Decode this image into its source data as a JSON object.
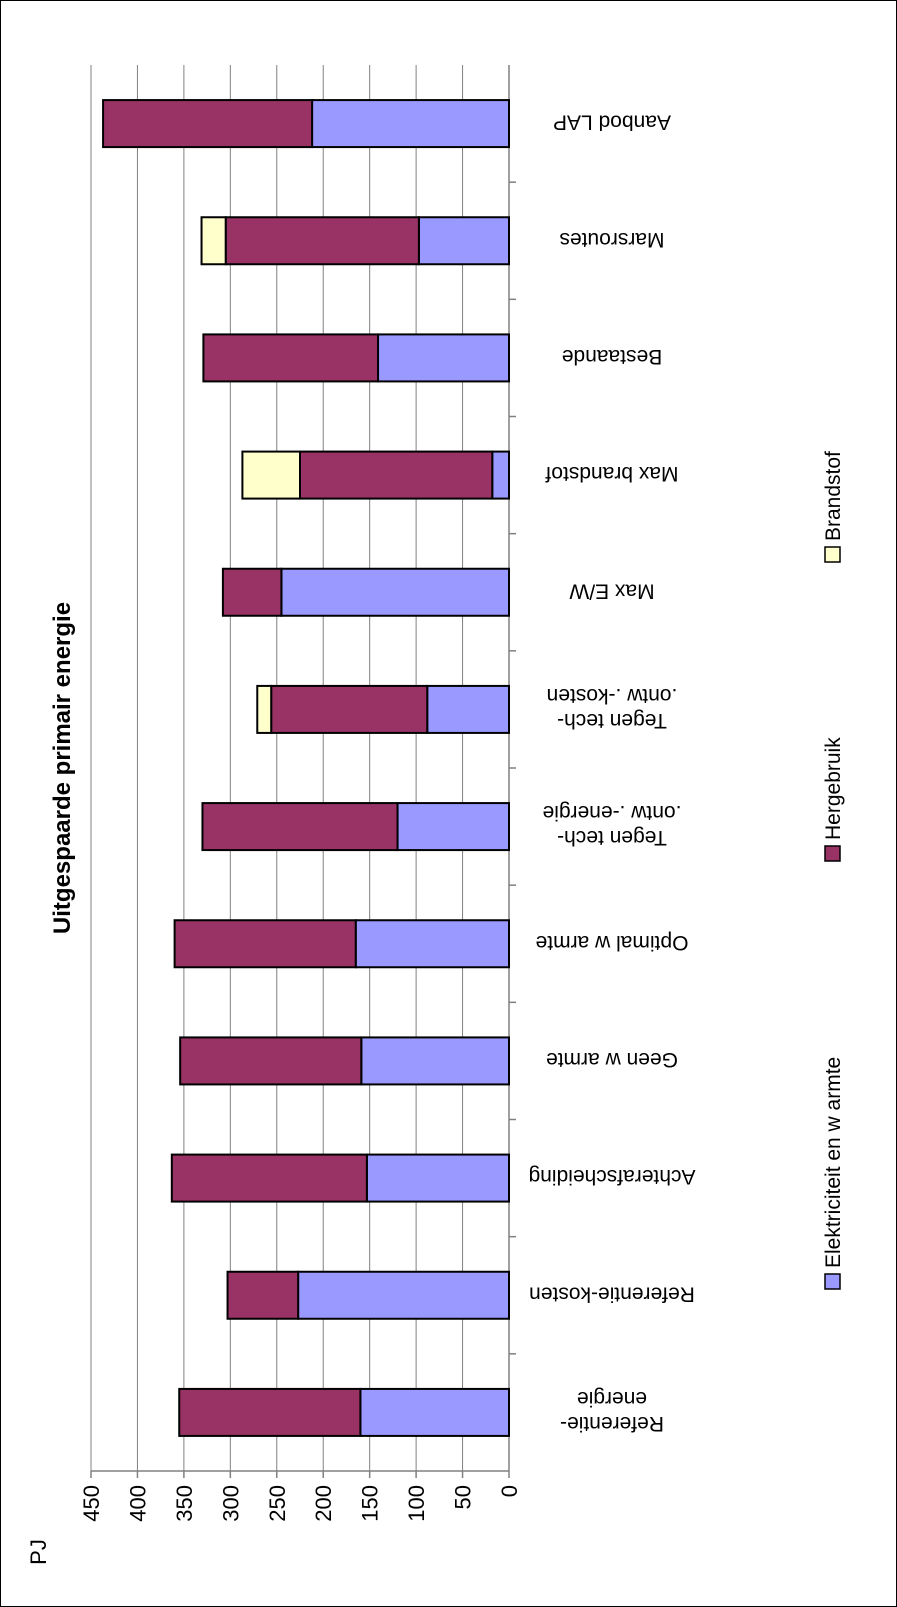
{
  "chart_data": {
    "type": "bar",
    "stacked": true,
    "orientation": "horizontal",
    "rotated": "90deg clockwise (figure printed sideways)",
    "title": "Uitgespaarde primair energie",
    "unit_label": "PJ",
    "xlabel": "",
    "ylabel": "PJ",
    "ylim": [
      0,
      450
    ],
    "ticks": [
      0,
      50,
      100,
      150,
      200,
      250,
      300,
      350,
      400,
      450
    ],
    "grid": true,
    "legend_position": "bottom",
    "categories": [
      "Referentie-\nenergie",
      "Referentie-kosten",
      "Achterafscheiding",
      "Geen w armte",
      "Optimal w armte",
      "Tegen tech-\n.ontw .-energie",
      "Tegen tech-\n.ontw .-kosten",
      "Max E/W",
      "Max brandstof",
      "Bestaande",
      "Marsroutes",
      "Aanbod LAP"
    ],
    "series": [
      {
        "name": "Elektriciteit en w armte",
        "color": "#9999ff",
        "values": [
          160,
          227,
          153,
          159,
          165,
          120,
          88,
          245,
          18,
          141,
          97,
          212
        ]
      },
      {
        "name": "Hergebruik",
        "color": "#993366",
        "values": [
          195,
          76,
          210,
          195,
          195,
          210,
          168,
          63,
          207,
          188,
          208,
          225
        ]
      },
      {
        "name": "Brandstof",
        "color": "#ffffcc",
        "values": [
          0,
          0,
          0,
          0,
          0,
          0,
          15,
          0,
          62,
          0,
          26,
          0
        ]
      }
    ]
  }
}
